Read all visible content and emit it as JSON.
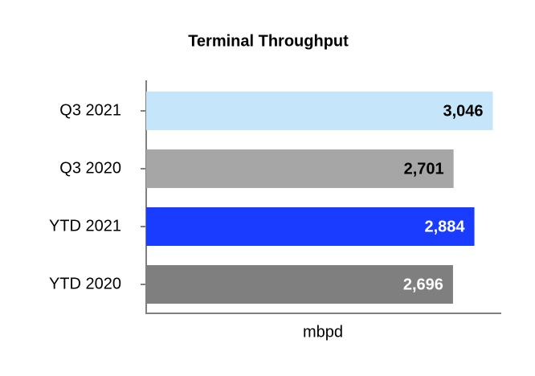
{
  "chart_data": {
    "type": "bar",
    "orientation": "horizontal",
    "title": "Terminal Throughput",
    "categories": [
      "Q3 2021",
      "Q3 2020",
      "YTD 2021",
      "YTD 2020"
    ],
    "values": [
      3046,
      2701,
      2884,
      2696
    ],
    "value_labels": [
      "3,046",
      "2,701",
      "2,884",
      "2,696"
    ],
    "colors": [
      "#c5e5fb",
      "#a6a6a6",
      "#1a3cff",
      "#7f7f7f"
    ],
    "xlabel": "mbpd",
    "xlim": [
      0,
      3120
    ]
  }
}
